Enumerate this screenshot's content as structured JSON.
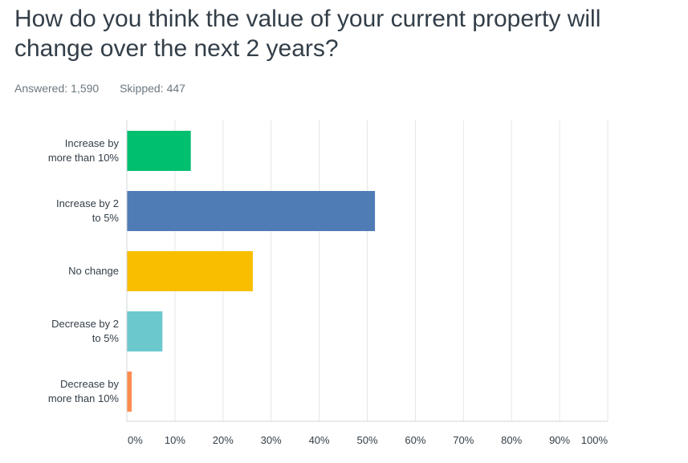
{
  "question": {
    "title": "How do you think the value of your current property will change over the next 2 years?"
  },
  "stats": {
    "answered_label": "Answered:",
    "answered_value": "1,590",
    "skipped_label": "Skipped:",
    "skipped_value": "447"
  },
  "chart_data": {
    "type": "bar",
    "orientation": "horizontal",
    "categories": [
      [
        "Increase by",
        "more than 10%"
      ],
      [
        "Increase by 2",
        "to 5%"
      ],
      [
        "No change"
      ],
      [
        "Decrease by 2",
        "to 5%"
      ],
      [
        "Decrease by",
        "more than 10%"
      ]
    ],
    "values": [
      13.3,
      51.6,
      26.2,
      7.4,
      1.0
    ],
    "colors": [
      "#00bf6f",
      "#507cb6",
      "#f9be00",
      "#6bc8cd",
      "#ff8b4f"
    ],
    "xlim": [
      0,
      100
    ],
    "ticks": [
      "0%",
      "10%",
      "20%",
      "30%",
      "40%",
      "50%",
      "60%",
      "70%",
      "80%",
      "90%",
      "100%"
    ],
    "grid": true,
    "legend": "none"
  }
}
